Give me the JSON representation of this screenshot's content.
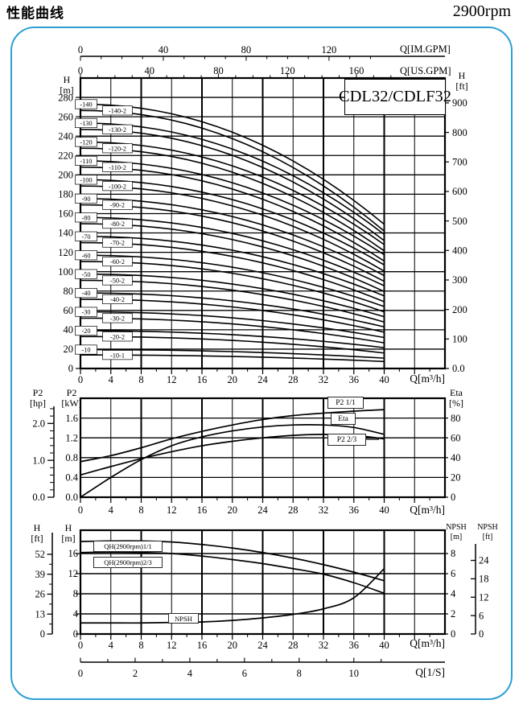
{
  "header": {
    "title": "性能曲线",
    "rpm": "2900rpm"
  },
  "model": "CDL32/CDLF32",
  "colors": {
    "frame_blue": "#2e9fd5",
    "ink": "#000000",
    "paper": "#ffffff"
  },
  "top_axes": {
    "im": {
      "label": "Q[IM.GPM]",
      "ticks": [
        0,
        40,
        80,
        120
      ],
      "minor_step": 10,
      "max_minor": 140
    },
    "us": {
      "label": "Q[US.GPM]",
      "ticks": [
        0,
        40,
        80,
        120,
        160
      ],
      "minor_step": 10,
      "max_minor": 180
    }
  },
  "chart_data": [
    {
      "name": "head-capacity",
      "type": "line",
      "title": "CDL32/CDLF32",
      "xlabel": "Q[m³/h]",
      "x_ticks": [
        0,
        4,
        8,
        12,
        16,
        20,
        24,
        28,
        32,
        36,
        40
      ],
      "x_grid_max": 48,
      "y_left": {
        "header": [
          "H",
          "[m]"
        ],
        "ticks": [
          0,
          20,
          40,
          60,
          80,
          100,
          120,
          140,
          160,
          180,
          200,
          220,
          240,
          260,
          280
        ],
        "lim": [
          0,
          300
        ]
      },
      "y_right": {
        "header": [
          "H",
          "[ft]"
        ],
        "ticks": [
          "0.0",
          100,
          200,
          300,
          400,
          500,
          600,
          700,
          800,
          900
        ]
      },
      "curves": [
        {
          "label": "-140",
          "col": 1,
          "h0": 273,
          "h40": 149
        },
        {
          "label": "-140-2",
          "col": 2,
          "h0": 266.5,
          "h40": 142
        },
        {
          "label": "-130",
          "col": 1,
          "h0": 253.5,
          "h40": 138.5
        },
        {
          "label": "-130-2",
          "col": 2,
          "h0": 247,
          "h40": 132
        },
        {
          "label": "-120",
          "col": 1,
          "h0": 234,
          "h40": 128
        },
        {
          "label": "-120-2",
          "col": 2,
          "h0": 227.5,
          "h40": 121.5
        },
        {
          "label": "-110",
          "col": 1,
          "h0": 214.5,
          "h40": 117.5
        },
        {
          "label": "-110-2",
          "col": 2,
          "h0": 208,
          "h40": 111
        },
        {
          "label": "-100",
          "col": 1,
          "h0": 195,
          "h40": 107
        },
        {
          "label": "-100-2",
          "col": 2,
          "h0": 188.5,
          "h40": 100.5
        },
        {
          "label": "-90",
          "col": 1,
          "h0": 175.5,
          "h40": 96
        },
        {
          "label": "-90-2",
          "col": 2,
          "h0": 169,
          "h40": 90
        },
        {
          "label": "-80",
          "col": 1,
          "h0": 156,
          "h40": 85.5
        },
        {
          "label": "-80-2",
          "col": 2,
          "h0": 149.5,
          "h40": 79.5
        },
        {
          "label": "-70",
          "col": 1,
          "h0": 136.5,
          "h40": 75
        },
        {
          "label": "-70-2",
          "col": 2,
          "h0": 130,
          "h40": 69
        },
        {
          "label": "-60",
          "col": 1,
          "h0": 117,
          "h40": 64
        },
        {
          "label": "-60-2",
          "col": 2,
          "h0": 110.5,
          "h40": 58.5
        },
        {
          "label": "-50",
          "col": 1,
          "h0": 97.5,
          "h40": 53.5
        },
        {
          "label": "-50-2",
          "col": 2,
          "h0": 91,
          "h40": 48
        },
        {
          "label": "-40",
          "col": 1,
          "h0": 78,
          "h40": 43
        },
        {
          "label": "-40-2",
          "col": 2,
          "h0": 71.5,
          "h40": 37.5
        },
        {
          "label": "-30",
          "col": 1,
          "h0": 58.5,
          "h40": 32
        },
        {
          "label": "-30-2",
          "col": 2,
          "h0": 52,
          "h40": 26.5
        },
        {
          "label": "-20",
          "col": 1,
          "h0": 39,
          "h40": 21.5
        },
        {
          "label": "-20-2",
          "col": 2,
          "h0": 33,
          "h40": 16
        },
        {
          "label": "-10",
          "col": 1,
          "h0": 19.5,
          "h40": 10.7
        },
        {
          "label": "-10-1",
          "col": 2,
          "h0": 14,
          "h40": 7.2
        }
      ]
    },
    {
      "name": "power-efficiency",
      "type": "line",
      "xlabel": "Q[m³/h]",
      "x_ticks": [
        0,
        4,
        8,
        12,
        16,
        20,
        24,
        28,
        32,
        36,
        40
      ],
      "y_hp": {
        "header": [
          "P2",
          "[hp]"
        ],
        "ticks": [
          "0.0",
          "1.0",
          "2.0"
        ]
      },
      "y_kw": {
        "header": [
          "P2",
          "[kW]"
        ],
        "ticks": [
          "0.0",
          "0.4",
          "0.8",
          "1.2",
          "1.6"
        ]
      },
      "y_eta": {
        "header": [
          "Eta",
          "[%]"
        ],
        "ticks": [
          0,
          20,
          40,
          60,
          80
        ]
      },
      "series": [
        {
          "name": "P2 1/1",
          "scale": "kw",
          "x": [
            0,
            4,
            8,
            12,
            16,
            20,
            24,
            28,
            32,
            36,
            40
          ],
          "y": [
            0.72,
            0.84,
            1.0,
            1.18,
            1.33,
            1.46,
            1.57,
            1.65,
            1.7,
            1.74,
            1.77
          ]
        },
        {
          "name": "Eta",
          "scale": "eta",
          "x": [
            0,
            4,
            8,
            12,
            16,
            20,
            24,
            28,
            32,
            36,
            40
          ],
          "y": [
            0,
            20,
            38,
            52,
            61,
            67,
            71,
            73,
            73,
            70.5,
            63.5
          ]
        },
        {
          "name": "P2 2/3",
          "scale": "kw",
          "x": [
            0,
            4,
            8,
            12,
            16,
            20,
            24,
            28,
            32,
            36,
            40
          ],
          "y": [
            0.45,
            0.62,
            0.78,
            0.92,
            1.04,
            1.13,
            1.2,
            1.25,
            1.27,
            1.25,
            1.18
          ]
        }
      ]
    },
    {
      "name": "qh-npsh",
      "type": "line",
      "xlabel": "Q[m³/h]",
      "x_ticks": [
        0,
        4,
        8,
        12,
        16,
        20,
        24,
        28,
        32,
        36,
        40
      ],
      "y_hft": {
        "header": [
          "H",
          "[ft]"
        ],
        "ticks": [
          0,
          13,
          26,
          39,
          52
        ]
      },
      "y_hm": {
        "header": [
          "H",
          "[m]"
        ],
        "ticks": [
          0,
          4,
          8,
          12,
          16
        ]
      },
      "y_npsh_m": {
        "header": [
          "NPSH",
          "[m]"
        ],
        "ticks": [
          0,
          2,
          4,
          6,
          8
        ]
      },
      "y_npsh_ft": {
        "header": [
          "NPSH",
          "[ft]"
        ],
        "ticks": [
          0,
          6,
          12,
          18,
          24
        ]
      },
      "series": [
        {
          "name": "QH(2900rpm)1/1",
          "scale": "h",
          "x": [
            0,
            4,
            8,
            12,
            16,
            20,
            24,
            28,
            32,
            36,
            40
          ],
          "y": [
            18.4,
            18.5,
            18.5,
            18.3,
            17.8,
            17.1,
            16.2,
            15.1,
            13.8,
            12.3,
            10.6
          ]
        },
        {
          "name": "QH(2900rpm)2/3",
          "scale": "h",
          "x": [
            0,
            4,
            8,
            12,
            16,
            20,
            24,
            28,
            32,
            36,
            40
          ],
          "y": [
            16.2,
            16.3,
            16.2,
            16.0,
            15.5,
            14.8,
            14.0,
            13.0,
            11.9,
            10.2,
            8.1
          ]
        },
        {
          "name": "NPSH",
          "scale": "npsh",
          "x": [
            0,
            4,
            8,
            12,
            16,
            20,
            24,
            28,
            32,
            36,
            40
          ],
          "y": [
            1.1,
            1.1,
            1.1,
            1.15,
            1.2,
            1.35,
            1.6,
            1.95,
            2.5,
            3.6,
            6.5
          ]
        }
      ],
      "lps_axis": {
        "label": "Q[1/S]",
        "ticks": [
          0,
          2,
          4,
          6,
          8,
          10
        ]
      }
    }
  ]
}
